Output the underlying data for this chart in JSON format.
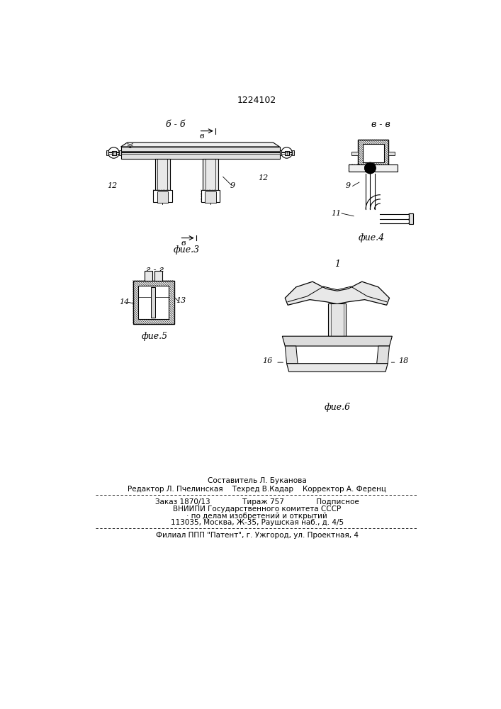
{
  "title": "1224102",
  "bg_color": "#ffffff",
  "line_color": "#000000",
  "fig3_label": "фие.3",
  "fig4_label": "фие.4",
  "fig5_label": "фие.5",
  "fig6_label": "фие.6",
  "section_bb": "б - б",
  "section_vv": "в - в",
  "section_gg": "г - г",
  "label_1": "1",
  "label_9_fig3": "9",
  "label_12_left": "12",
  "label_12_right": "12",
  "label_9_fig4": "9",
  "label_11": "11",
  "label_13": "13",
  "label_14": "14",
  "label_16": "16",
  "label_18": "18",
  "footer_line1": "Составитель Л. Буканова",
  "footer_line2": "Редактор Л. Пчелинская    Техред В.Кадар    Корректор А. Ференц",
  "footer_line3": "Заказ 1870/13              Тираж 757              Подписное",
  "footer_line4": "ВНИИПИ Государственного комитета СССР",
  "footer_line5": "· по делам изобретений и открытий",
  "footer_line6": "113035, Москва, Ж-35, Раушская наб., д. 4/5",
  "footer_line7": "Филиал ППП \"Патент\", г. Ужгород, ул. Проектная, 4"
}
